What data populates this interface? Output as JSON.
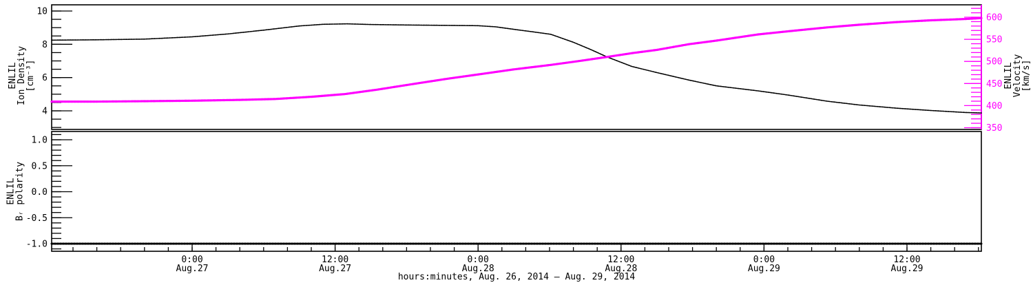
{
  "page": {
    "background": "#ffffff",
    "plot_frame_color": "#000000"
  },
  "colors": {
    "density": "#000000",
    "velocity": "#ff00ff",
    "polarity": "#000000"
  },
  "chart_data": {
    "type": "line",
    "title": "",
    "x_axis": {
      "title": "hours:minutes, Aug. 26, 2014 – Aug. 29, 2014",
      "min_hours_rel_aug27_0000": -11.79,
      "max_hours_rel_aug27_0000": 66.24,
      "minor_step_hours": 2,
      "major_ticks": [
        {
          "t": 0,
          "label_top": "0:00",
          "label_bottom": "Aug.27"
        },
        {
          "t": 12,
          "label_top": "12:00",
          "label_bottom": "Aug.27"
        },
        {
          "t": 24,
          "label_top": "0:00",
          "label_bottom": "Aug.28"
        },
        {
          "t": 36,
          "label_top": "12:00",
          "label_bottom": "Aug.28"
        },
        {
          "t": 48,
          "label_top": "0:00",
          "label_bottom": "Aug.29"
        },
        {
          "t": 60,
          "label_top": "12:00",
          "label_bottom": "Aug.29"
        }
      ]
    },
    "panels": [
      {
        "id": "density-velocity",
        "left_axis": {
          "scale_id": "density",
          "title_lines": [
            "ENLIL",
            "Ion Density",
            "[cm⁻³]"
          ],
          "color": "#000000",
          "min": 2.88,
          "max": 10.37,
          "major_ticks": [
            {
              "v": 4,
              "label": "4"
            },
            {
              "v": 6,
              "label": "6"
            },
            {
              "v": 8,
              "label": "8"
            },
            {
              "v": 10,
              "label": "10"
            }
          ],
          "minor_step": 0.5,
          "minor_range": [
            3,
            10
          ]
        },
        "right_axis": {
          "scale_id": "velocity",
          "title_lines": [
            "ENLIL",
            "Velocity",
            "[km/s]"
          ],
          "color": "#ff00ff",
          "min": 346,
          "max": 628,
          "major_ticks": [
            {
              "v": 350,
              "label": "350"
            },
            {
              "v": 400,
              "label": "400"
            },
            {
              "v": 450,
              "label": "450"
            },
            {
              "v": 500,
              "label": "500"
            },
            {
              "v": 550,
              "label": "550"
            },
            {
              "v": 600,
              "label": "600"
            }
          ],
          "minor_step": 10,
          "minor_range": [
            350,
            620
          ]
        },
        "series": [
          {
            "name": "ion-density",
            "axis": "density",
            "color": "#000000",
            "stroke_width": 1.6,
            "dash": "2.5 1.2",
            "points": [
              [
                -11.79,
                8.25
              ],
              [
                -8,
                8.27
              ],
              [
                -4,
                8.31
              ],
              [
                0,
                8.45
              ],
              [
                3,
                8.62
              ],
              [
                6,
                8.85
              ],
              [
                9,
                9.1
              ],
              [
                11,
                9.2
              ],
              [
                13,
                9.23
              ],
              [
                15,
                9.19
              ],
              [
                18,
                9.16
              ],
              [
                21,
                9.14
              ],
              [
                24,
                9.12
              ],
              [
                25.5,
                9.05
              ],
              [
                27,
                8.9
              ],
              [
                28.5,
                8.76
              ],
              [
                30.1,
                8.6
              ],
              [
                32,
                8.12
              ],
              [
                33.5,
                7.67
              ],
              [
                34.8,
                7.25
              ],
              [
                36.9,
                6.67
              ],
              [
                39,
                6.3
              ],
              [
                41.7,
                5.85
              ],
              [
                44,
                5.5
              ],
              [
                47.5,
                5.2
              ],
              [
                50,
                4.95
              ],
              [
                53.3,
                4.58
              ],
              [
                56,
                4.35
              ],
              [
                59.1,
                4.16
              ],
              [
                62,
                4.02
              ],
              [
                64.9,
                3.9
              ],
              [
                66.24,
                3.87
              ]
            ]
          },
          {
            "name": "velocity",
            "axis": "velocity",
            "color": "#ff00ff",
            "stroke_width": 3.2,
            "dash": "3 1.6",
            "underlay_color": "#000000",
            "points": [
              [
                -11.79,
                409
              ],
              [
                -8,
                409
              ],
              [
                -4,
                410
              ],
              [
                0,
                411
              ],
              [
                4,
                413
              ],
              [
                7,
                415
              ],
              [
                10,
                420
              ],
              [
                12.8,
                426
              ],
              [
                15.5,
                436
              ],
              [
                18.6,
                449
              ],
              [
                21.5,
                461
              ],
              [
                24.4,
                472
              ],
              [
                27,
                482
              ],
              [
                30.1,
                492
              ],
              [
                32.5,
                501
              ],
              [
                34.8,
                510
              ],
              [
                37,
                519
              ],
              [
                39,
                526
              ],
              [
                41.7,
                539
              ],
              [
                44,
                547
              ],
              [
                47.5,
                561
              ],
              [
                50,
                568
              ],
              [
                53.3,
                577
              ],
              [
                56,
                583
              ],
              [
                59.1,
                589
              ],
              [
                62,
                593
              ],
              [
                64.9,
                596
              ],
              [
                66.24,
                598
              ]
            ]
          }
        ]
      },
      {
        "id": "br-polarity",
        "left_axis": {
          "scale_id": "polarity",
          "title_lines": [
            "ENLIL",
            "Bᵣ polarity"
          ],
          "color": "#000000",
          "min": -1.15,
          "max": 1.16,
          "major_ticks": [
            {
              "v": 1.0,
              "label": "1.0"
            },
            {
              "v": 0.5,
              "label": "0.5"
            },
            {
              "v": 0.0,
              "label": "0.0"
            },
            {
              "v": -0.5,
              "label": "-0.5"
            },
            {
              "v": -1.0,
              "label": "-1.0"
            }
          ],
          "minor_step": 0.1,
          "minor_range": [
            -1.1,
            1.1
          ]
        },
        "series": [
          {
            "name": "br-polarity",
            "axis": "polarity",
            "color": "#000000",
            "stroke_width": 3,
            "dash": "2 2",
            "points": [
              [
                -11.79,
                -1.0
              ],
              [
                66.24,
                -1.0
              ]
            ]
          }
        ]
      }
    ]
  }
}
